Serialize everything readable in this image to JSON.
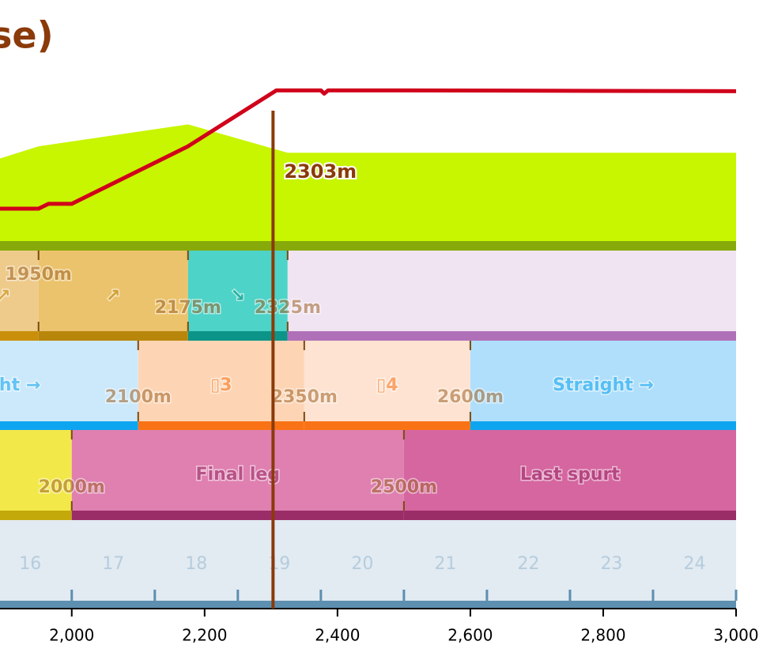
{
  "title": "se)",
  "chart_data": {
    "type": "course",
    "xlim": [
      1892,
      3000
    ],
    "xticks": [
      {
        "value": 2000,
        "label": "2,000"
      },
      {
        "value": 2200,
        "label": "2,200"
      },
      {
        "value": 2400,
        "label": "2,400"
      },
      {
        "value": 2600,
        "label": "2,600"
      },
      {
        "value": 2800,
        "label": "2,800"
      },
      {
        "value": 3000,
        "label": "3,000"
      }
    ],
    "ylim": [
      0,
      100
    ],
    "line": {
      "color": "#d0021b",
      "x": [
        1892,
        1950,
        1965,
        2000,
        2175,
        2308,
        2375,
        2380,
        2386,
        2500,
        3000
      ],
      "values": [
        20,
        20,
        23,
        23,
        58.5,
        93,
        93,
        91,
        93,
        93,
        92.5
      ]
    },
    "elevation": {
      "color": "#c8f500",
      "x": [
        1892,
        1950,
        2175,
        2325,
        3000
      ],
      "values": [
        51,
        58.5,
        72,
        54.5,
        54.5
      ]
    },
    "slopes": [
      {
        "name": "↗",
        "color": "#eecb8b",
        "edge": "#c98f0a"
      },
      {
        "start": 1950,
        "start_label": "1950m",
        "name": "↗",
        "color": "#ebc36c",
        "edge": "#b8860b"
      },
      {
        "start": 2175,
        "start_label": "2175m",
        "name": "↘",
        "color": "#4dd3c7",
        "edge": "#0d9488"
      },
      {
        "start": 2325,
        "start_label": "2325m",
        "color": "#f0e4f2",
        "edge": "#b070b8"
      }
    ],
    "corners": [
      {
        "name": "Straight →",
        "color": "#cce9fb",
        "edge": "#0ea5f0"
      },
      {
        "start": 2100,
        "start_label": "2100m",
        "name": "▯3",
        "color": "#fdd5b5",
        "edge": "#f97316"
      },
      {
        "start": 2350,
        "start_label": "2350m",
        "name": "▯4",
        "color": "#fee3d2",
        "edge": "#f97316"
      },
      {
        "start": 2600,
        "start_label": "2600m",
        "name": "Straight →",
        "color": "#b0dffb",
        "edge": "#0ea5f0"
      }
    ],
    "phases": [
      {
        "color": "#f3e84a",
        "edge": "#c4a90a"
      },
      {
        "start": 2000,
        "start_label": "2000m",
        "name": "Final leg",
        "color": "#df80b0",
        "edge": "#9a2d68"
      },
      {
        "start": 2500,
        "start_label": "2500m",
        "name": "Last spurt",
        "color": "#d566a0",
        "edge": "#9a2d68"
      }
    ],
    "sections": {
      "bounds": [
        1875,
        2000,
        2125,
        2250,
        2375,
        2500,
        2625,
        2750,
        2875,
        3000
      ],
      "labels": [
        16,
        17,
        18,
        19,
        20,
        21,
        22,
        23,
        24
      ]
    },
    "marker": {
      "position": 2303,
      "label": "2303m",
      "color": "#8b3a0a"
    }
  }
}
